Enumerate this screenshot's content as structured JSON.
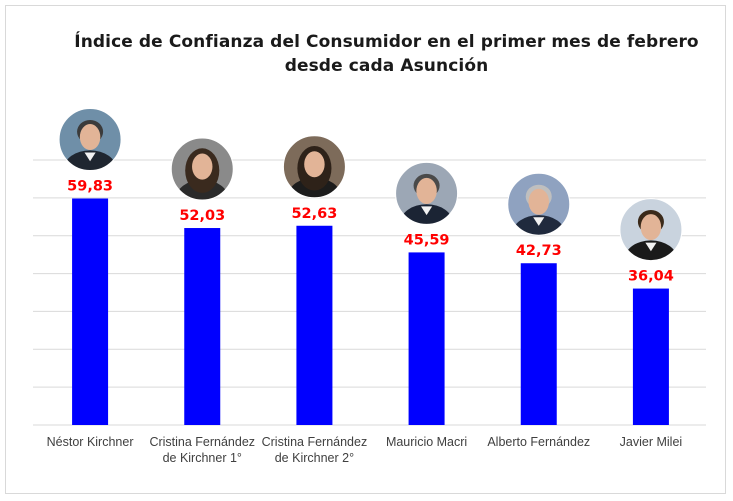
{
  "chart_data": {
    "type": "bar",
    "title": "Índice de Confianza del Consumidor en el primer mes de febrero desde cada Asunción",
    "title_lines": [
      "Índice de Confianza del Consumidor en el primer mes de febrero",
      "desde cada Asunción"
    ],
    "categories": [
      "Néstor Kirchner",
      "Cristina Fernández de Kirchner 1°",
      "Cristina Fernández de Kirchner 2°",
      "Mauricio Macri",
      "Alberto Fernández",
      "Javier Milei"
    ],
    "category_lines": [
      [
        "Néstor Kirchner"
      ],
      [
        "Cristina Fernández",
        "de Kirchner 1°"
      ],
      [
        "Cristina Fernández",
        "de Kirchner 2°"
      ],
      [
        "Mauricio Macri"
      ],
      [
        "Alberto Fernández"
      ],
      [
        "Javier Milei"
      ]
    ],
    "values": [
      59.83,
      52.03,
      52.63,
      45.59,
      42.73,
      36.04
    ],
    "value_labels": [
      "59,83",
      "52,03",
      "52,63",
      "45,59",
      "42,73",
      "36,04"
    ],
    "xlabel": "",
    "ylabel": "",
    "ylim": [
      0,
      70
    ],
    "grid": true,
    "legend": "none",
    "bar_color": "#0000ff",
    "label_color": "#ff0000",
    "avatar_icons": [
      "portrait-nestor-kirchner-icon",
      "portrait-cristina-fernandez-icon",
      "portrait-cristina-fernandez-icon",
      "portrait-mauricio-macri-icon",
      "portrait-alberto-fernandez-icon",
      "portrait-javier-milei-icon"
    ]
  }
}
